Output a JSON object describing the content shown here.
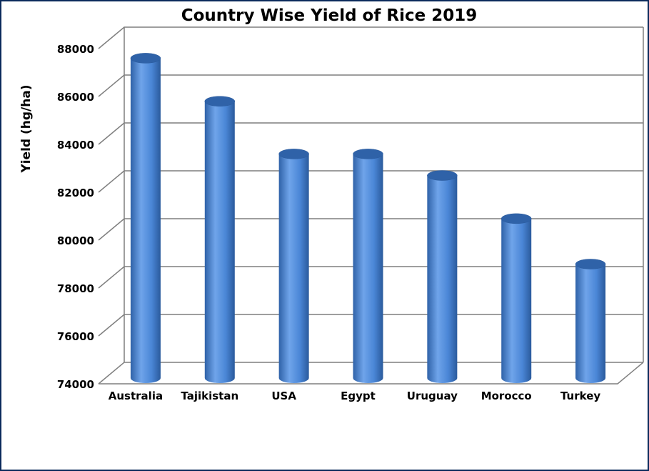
{
  "chart_data": {
    "type": "bar",
    "title": "Country Wise Yield of Rice 2019",
    "xlabel": "",
    "ylabel": "Yield (hg/ha)",
    "categories": [
      "Australia",
      "Tajikistan",
      "USA",
      "Egypt",
      "Uruguay",
      "Morocco",
      "Turkey"
    ],
    "values": [
      87600,
      85800,
      83600,
      83600,
      82700,
      80900,
      79000
    ],
    "ylim": [
      74000,
      88000
    ],
    "yticks": [
      "74000",
      "76000",
      "78000",
      "80000",
      "82000",
      "84000",
      "86000",
      "88000"
    ],
    "grid": true,
    "legend": "none",
    "bar_style": "3d-cylinder",
    "colors": {
      "bar": "#4a86d6",
      "bar_light": "#6fa4ea",
      "bar_dark": "#2f62a8",
      "grid": "#7f7f7f"
    }
  }
}
